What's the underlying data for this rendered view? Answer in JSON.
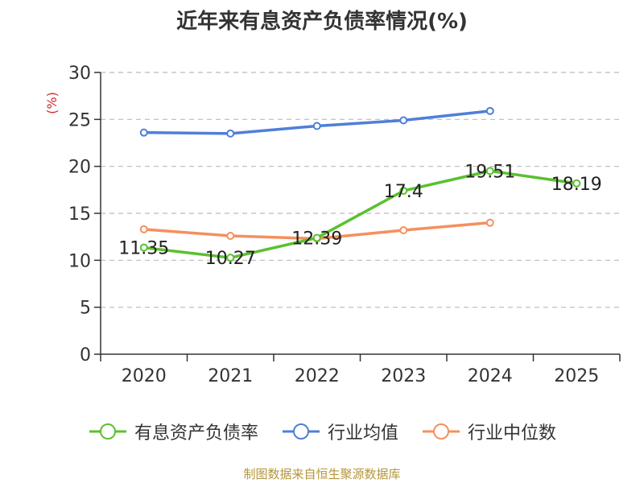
{
  "title": "近年来有息资产负债率情况(%)",
  "footer": "制图数据来自恒生聚源数据库",
  "chart_data": {
    "type": "line",
    "title": "近年来有息资产负债率情况(%)",
    "xlabel": "",
    "ylabel": "(%)",
    "categories": [
      "2020",
      "2021",
      "2022",
      "2023",
      "2024",
      "2025"
    ],
    "ylim": [
      0,
      30
    ],
    "yticks": [
      0,
      5,
      10,
      15,
      20,
      25,
      30
    ],
    "grid": true,
    "legend_position": "bottom",
    "series": [
      {
        "name": "有息资产负债率",
        "color": "#5ac12f",
        "values": [
          11.35,
          10.27,
          12.39,
          17.4,
          19.51,
          18.19
        ],
        "labels": [
          "11.35",
          "10.27",
          "12.39",
          "17.4",
          "19.51",
          "18.19"
        ]
      },
      {
        "name": "行业均值",
        "color": "#4f7fd9",
        "values": [
          23.6,
          23.5,
          24.3,
          24.9,
          25.9,
          null
        ]
      },
      {
        "name": "行业中位数",
        "color": "#f4905f",
        "values": [
          13.3,
          12.6,
          12.3,
          13.2,
          14.0,
          null
        ]
      }
    ]
  }
}
